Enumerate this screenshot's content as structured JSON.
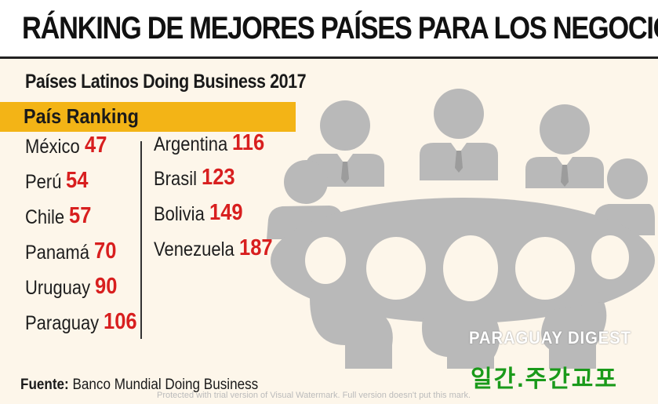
{
  "title": "RÁNKING DE MEJORES PAÍSES PARA LOS NEGOCIOS",
  "subtitle": "Países Latinos Doing Business 2017",
  "table_header": "País  Ranking",
  "source_label": "Fuente:",
  "source_text": "Banco Mundial Doing Business",
  "brand": "PARAGUAY DIGEST",
  "korean_text": "일간.주간교포",
  "watermark": "Protected with trial version of Visual Watermark. Full version doesn't put this mark.",
  "colors": {
    "accent": "#f3b416",
    "rank": "#d81f1f",
    "figures": "#b9b9b9"
  },
  "chart_data": {
    "type": "table",
    "title": "RÁNKING DE MEJORES PAÍSES PARA LOS NEGOCIOS",
    "subtitle": "Países Latinos Doing Business 2017",
    "columns": [
      "País",
      "Ranking"
    ],
    "rows": [
      {
        "country": "México",
        "rank": "47"
      },
      {
        "country": "Perú",
        "rank": "54"
      },
      {
        "country": "Chile",
        "rank": "57"
      },
      {
        "country": "Panamá",
        "rank": "70"
      },
      {
        "country": "Uruguay",
        "rank": "90"
      },
      {
        "country": "Paraguay",
        "rank": "106"
      },
      {
        "country": "Argentina",
        "rank": "116"
      },
      {
        "country": "Brasil",
        "rank": "123"
      },
      {
        "country": "Bolivia",
        "rank": "149"
      },
      {
        "country": "Venezuela",
        "rank": "187"
      }
    ]
  }
}
